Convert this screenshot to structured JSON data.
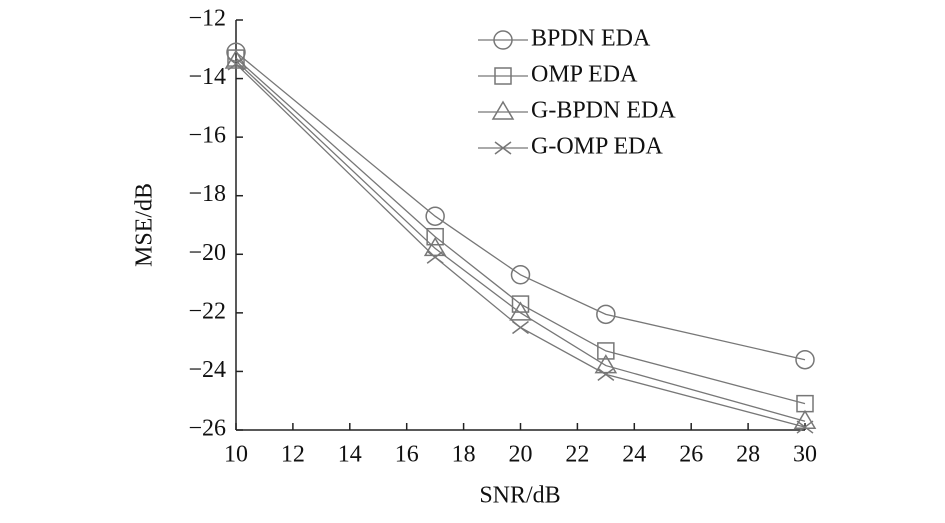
{
  "chart_data": {
    "type": "line",
    "x_label": "SNR/dB",
    "y_label": "MSE/dB",
    "x": [
      10,
      17,
      20,
      23,
      30
    ],
    "series": [
      {
        "name": "BPDN EDA",
        "color": "#777777",
        "marker": "circle",
        "values": [
          -13.1,
          -18.7,
          -20.7,
          -22.05,
          -23.6
        ]
      },
      {
        "name": "OMP EDA",
        "color": "#777777",
        "marker": "square",
        "values": [
          -13.3,
          -19.4,
          -21.7,
          -23.3,
          -25.1
        ]
      },
      {
        "name": "G-BPDN EDA",
        "color": "#777777",
        "marker": "triangle",
        "values": [
          -13.4,
          -19.8,
          -22.0,
          -23.8,
          -25.7
        ]
      },
      {
        "name": "G-OMP EDA",
        "color": "#777777",
        "marker": "x",
        "values": [
          -13.5,
          -20.1,
          -22.5,
          -24.1,
          -25.9
        ]
      }
    ],
    "xlim": [
      10,
      30
    ],
    "xticks": [
      10,
      12,
      14,
      16,
      18,
      20,
      22,
      24,
      26,
      28,
      30
    ],
    "ylim": [
      -26,
      -12
    ],
    "yticks": [
      {
        "value": -26,
        "label": "−26"
      },
      {
        "value": -24,
        "label": "−24"
      },
      {
        "value": -22,
        "label": "−22"
      },
      {
        "value": -20,
        "label": "−20"
      },
      {
        "value": -18,
        "label": "−18"
      },
      {
        "value": -16,
        "label": "−16"
      },
      {
        "value": -14,
        "label": "−14"
      },
      {
        "value": -12,
        "label": "−12"
      }
    ],
    "legend": "top-right",
    "grid": false
  }
}
